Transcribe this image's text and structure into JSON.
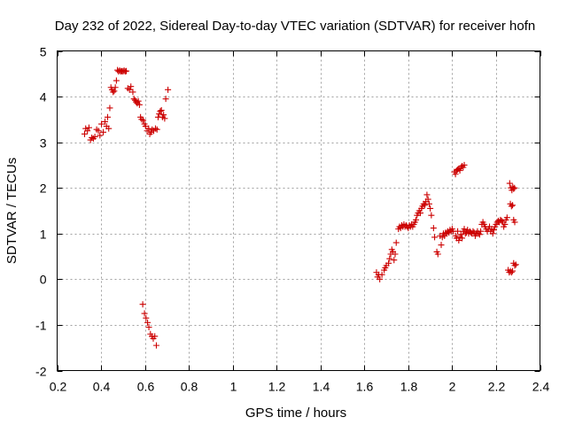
{
  "chart_data": {
    "type": "scatter",
    "title": "Day 232 of 2022, Sidereal Day-to-day VTEC variation (SDTVAR) for receiver hofn",
    "xlabel": "GPS time / hours",
    "ylabel": "SDTVAR / TECUs",
    "xlim": [
      0.2,
      2.4
    ],
    "ylim": [
      -2,
      5
    ],
    "xticks": [
      0.2,
      0.4,
      0.6,
      0.8,
      1,
      1.2,
      1.4,
      1.6,
      1.8,
      2,
      2.2,
      2.4
    ],
    "xtick_labels": [
      "0.2",
      "0.4",
      "0.6",
      "0.8",
      "1",
      "1.2",
      "1.4",
      "1.6",
      "1.8",
      "2",
      "2.2",
      "2.4"
    ],
    "yticks": [
      -2,
      -1,
      0,
      1,
      2,
      3,
      4,
      5
    ],
    "ytick_labels": [
      "-2",
      "-1",
      "0",
      "1",
      "2",
      "3",
      "4",
      "5"
    ],
    "grid": true,
    "marker": "+",
    "color": "#cc0000",
    "series": [
      {
        "name": "SDTVAR",
        "points": [
          [
            0.325,
            3.18
          ],
          [
            0.33,
            3.3
          ],
          [
            0.338,
            3.25
          ],
          [
            0.345,
            3.32
          ],
          [
            0.352,
            3.05
          ],
          [
            0.358,
            3.1
          ],
          [
            0.365,
            3.08
          ],
          [
            0.372,
            3.12
          ],
          [
            0.38,
            3.28
          ],
          [
            0.388,
            3.25
          ],
          [
            0.395,
            3.15
          ],
          [
            0.402,
            3.4
          ],
          [
            0.41,
            3.22
          ],
          [
            0.418,
            3.45
          ],
          [
            0.425,
            3.35
          ],
          [
            0.43,
            3.55
          ],
          [
            0.435,
            3.3
          ],
          [
            0.44,
            3.75
          ],
          [
            0.445,
            4.2
          ],
          [
            0.45,
            4.15
          ],
          [
            0.455,
            4.1
          ],
          [
            0.46,
            4.12
          ],
          [
            0.465,
            4.2
          ],
          [
            0.47,
            4.35
          ],
          [
            0.475,
            4.58
          ],
          [
            0.48,
            4.55
          ],
          [
            0.485,
            4.57
          ],
          [
            0.49,
            4.55
          ],
          [
            0.495,
            4.56
          ],
          [
            0.5,
            4.55
          ],
          [
            0.505,
            4.57
          ],
          [
            0.51,
            4.55
          ],
          [
            0.515,
            4.56
          ],
          [
            0.522,
            4.18
          ],
          [
            0.53,
            4.15
          ],
          [
            0.536,
            4.22
          ],
          [
            0.545,
            4.1
          ],
          [
            0.55,
            3.95
          ],
          [
            0.555,
            3.92
          ],
          [
            0.56,
            3.88
          ],
          [
            0.565,
            3.85
          ],
          [
            0.57,
            3.9
          ],
          [
            0.575,
            3.82
          ],
          [
            0.58,
            3.55
          ],
          [
            0.585,
            3.5
          ],
          [
            0.592,
            3.48
          ],
          [
            0.598,
            3.4
          ],
          [
            0.603,
            3.35
          ],
          [
            0.61,
            3.25
          ],
          [
            0.617,
            3.3
          ],
          [
            0.622,
            3.18
          ],
          [
            0.628,
            3.22
          ],
          [
            0.633,
            3.28
          ],
          [
            0.64,
            3.25
          ],
          [
            0.648,
            3.3
          ],
          [
            0.655,
            3.28
          ],
          [
            0.66,
            3.55
          ],
          [
            0.665,
            3.62
          ],
          [
            0.67,
            3.68
          ],
          [
            0.675,
            3.7
          ],
          [
            0.68,
            3.55
          ],
          [
            0.685,
            3.6
          ],
          [
            0.69,
            3.52
          ],
          [
            0.695,
            3.95
          ],
          [
            0.705,
            4.15
          ],
          [
            0.59,
            -0.55
          ],
          [
            0.598,
            -0.75
          ],
          [
            0.605,
            -0.85
          ],
          [
            0.612,
            -0.95
          ],
          [
            0.618,
            -1.05
          ],
          [
            0.625,
            -1.2
          ],
          [
            0.632,
            -1.25
          ],
          [
            0.638,
            -1.3
          ],
          [
            0.645,
            -1.25
          ],
          [
            0.652,
            -1.45
          ],
          [
            1.655,
            0.15
          ],
          [
            1.66,
            0.05
          ],
          [
            1.665,
            0.1
          ],
          [
            1.67,
            0.0
          ],
          [
            1.68,
            0.1
          ],
          [
            1.69,
            0.2
          ],
          [
            1.695,
            0.25
          ],
          [
            1.7,
            0.3
          ],
          [
            1.71,
            0.35
          ],
          [
            1.715,
            0.45
          ],
          [
            1.72,
            0.55
          ],
          [
            1.725,
            0.65
          ],
          [
            1.73,
            0.6
          ],
          [
            1.735,
            0.42
          ],
          [
            1.74,
            0.55
          ],
          [
            1.745,
            0.8
          ],
          [
            1.755,
            1.1
          ],
          [
            1.76,
            1.15
          ],
          [
            1.765,
            1.12
          ],
          [
            1.77,
            1.18
          ],
          [
            1.775,
            1.15
          ],
          [
            1.78,
            1.2
          ],
          [
            1.785,
            1.15
          ],
          [
            1.79,
            1.18
          ],
          [
            1.795,
            1.15
          ],
          [
            1.8,
            1.12
          ],
          [
            1.805,
            1.18
          ],
          [
            1.81,
            1.15
          ],
          [
            1.815,
            1.2
          ],
          [
            1.82,
            1.15
          ],
          [
            1.825,
            1.2
          ],
          [
            1.83,
            1.25
          ],
          [
            1.835,
            1.3
          ],
          [
            1.84,
            1.4
          ],
          [
            1.845,
            1.45
          ],
          [
            1.85,
            1.5
          ],
          [
            1.855,
            1.45
          ],
          [
            1.86,
            1.55
          ],
          [
            1.865,
            1.6
          ],
          [
            1.87,
            1.65
          ],
          [
            1.875,
            1.62
          ],
          [
            1.88,
            1.7
          ],
          [
            1.885,
            1.85
          ],
          [
            1.89,
            1.75
          ],
          [
            1.895,
            1.65
          ],
          [
            1.9,
            1.55
          ],
          [
            1.905,
            1.4
          ],
          [
            1.915,
            1.12
          ],
          [
            1.92,
            0.92
          ],
          [
            1.93,
            0.6
          ],
          [
            1.935,
            0.55
          ],
          [
            1.945,
            0.95
          ],
          [
            1.95,
            0.75
          ],
          [
            1.955,
            0.92
          ],
          [
            1.96,
            1.0
          ],
          [
            1.965,
            0.95
          ],
          [
            1.97,
            1.02
          ],
          [
            1.975,
            1.0
          ],
          [
            1.98,
            1.05
          ],
          [
            1.985,
            1.02
          ],
          [
            1.99,
            1.08
          ],
          [
            1.995,
            1.05
          ],
          [
            2.0,
            1.1
          ],
          [
            2.005,
            1.05
          ],
          [
            2.01,
            2.35
          ],
          [
            2.015,
            2.3
          ],
          [
            2.02,
            2.38
          ],
          [
            2.025,
            2.4
          ],
          [
            2.03,
            2.42
          ],
          [
            2.035,
            2.38
          ],
          [
            2.04,
            2.45
          ],
          [
            2.045,
            2.48
          ],
          [
            2.05,
            2.45
          ],
          [
            2.055,
            2.5
          ],
          [
            2.015,
            0.95
          ],
          [
            2.02,
            0.9
          ],
          [
            2.025,
            1.05
          ],
          [
            2.03,
            0.85
          ],
          [
            2.035,
            0.92
          ],
          [
            2.04,
            0.98
          ],
          [
            2.045,
            0.9
          ],
          [
            2.05,
            1.05
          ],
          [
            2.055,
            1.1
          ],
          [
            2.06,
            1.0
          ],
          [
            2.065,
            1.02
          ],
          [
            2.07,
            1.08
          ],
          [
            2.075,
            1.0
          ],
          [
            2.08,
            1.05
          ],
          [
            2.085,
            1.02
          ],
          [
            2.09,
            1.0
          ],
          [
            2.095,
            1.05
          ],
          [
            2.1,
            1.02
          ],
          [
            2.105,
            0.95
          ],
          [
            2.11,
            1.0
          ],
          [
            2.115,
            1.05
          ],
          [
            2.12,
            1.0
          ],
          [
            2.125,
            0.98
          ],
          [
            2.13,
            1.05
          ],
          [
            2.135,
            1.2
          ],
          [
            2.14,
            1.25
          ],
          [
            2.145,
            1.2
          ],
          [
            2.15,
            1.15
          ],
          [
            2.155,
            1.1
          ],
          [
            2.16,
            1.05
          ],
          [
            2.165,
            1.1
          ],
          [
            2.17,
            1.15
          ],
          [
            2.175,
            1.05
          ],
          [
            2.18,
            1.1
          ],
          [
            2.185,
            1.0
          ],
          [
            2.19,
            1.08
          ],
          [
            2.195,
            1.15
          ],
          [
            2.2,
            1.2
          ],
          [
            2.205,
            1.25
          ],
          [
            2.21,
            1.28
          ],
          [
            2.215,
            1.25
          ],
          [
            2.22,
            1.3
          ],
          [
            2.225,
            1.28
          ],
          [
            2.23,
            1.25
          ],
          [
            2.235,
            1.15
          ],
          [
            2.24,
            1.2
          ],
          [
            2.245,
            1.3
          ],
          [
            2.25,
            1.35
          ],
          [
            2.255,
            0.2
          ],
          [
            2.26,
            0.15
          ],
          [
            2.265,
            0.18
          ],
          [
            2.27,
            0.15
          ],
          [
            2.275,
            0.18
          ],
          [
            2.262,
            2.1
          ],
          [
            2.268,
            2.0
          ],
          [
            2.272,
            1.95
          ],
          [
            2.276,
            2.02
          ],
          [
            2.28,
            1.98
          ],
          [
            2.284,
            2.0
          ],
          [
            2.265,
            1.65
          ],
          [
            2.27,
            1.6
          ],
          [
            2.275,
            1.62
          ],
          [
            2.28,
            1.3
          ],
          [
            2.285,
            1.25
          ],
          [
            2.28,
            0.35
          ],
          [
            2.285,
            0.3
          ],
          [
            2.29,
            0.32
          ]
        ]
      }
    ]
  }
}
